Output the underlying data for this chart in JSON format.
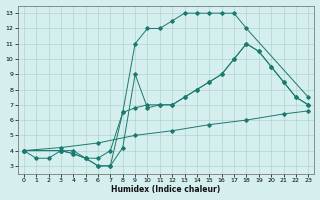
{
  "xlabel": "Humidex (Indice chaleur)",
  "bg_color": "#d5eeee",
  "grid_color": "#aacccc",
  "line_color": "#1a7a6e",
  "xlim": [
    -0.5,
    23.5
  ],
  "ylim": [
    2.5,
    13.5
  ],
  "xticks": [
    0,
    1,
    2,
    3,
    4,
    5,
    6,
    7,
    8,
    9,
    10,
    11,
    12,
    13,
    14,
    15,
    16,
    17,
    18,
    19,
    20,
    21,
    22,
    23
  ],
  "yticks": [
    3,
    4,
    5,
    6,
    7,
    8,
    9,
    10,
    11,
    12,
    13
  ],
  "line1_x": [
    0,
    1,
    2,
    3,
    4,
    5,
    6,
    7,
    8,
    9,
    10,
    11,
    12,
    13,
    14,
    15,
    16,
    17,
    18,
    23
  ],
  "line1_y": [
    4,
    3.5,
    3.5,
    4,
    4,
    3.5,
    3.0,
    3.0,
    6.5,
    11.0,
    12.0,
    12.0,
    12.5,
    13.0,
    13.0,
    13.0,
    13.0,
    13.0,
    12.0,
    7.5
  ],
  "line2_x": [
    0,
    3,
    4,
    5,
    6,
    7,
    8,
    9,
    10,
    11,
    12,
    13,
    14,
    15,
    16,
    17,
    18,
    19,
    20,
    21,
    22,
    23
  ],
  "line2_y": [
    4,
    4.0,
    3.8,
    3.5,
    3.5,
    4.0,
    6.5,
    6.8,
    7.0,
    7.0,
    7.0,
    7.5,
    8.0,
    8.5,
    9.0,
    10.0,
    11.0,
    10.5,
    9.5,
    8.5,
    7.5,
    7.0
  ],
  "line3_x": [
    0,
    3,
    6,
    9,
    12,
    15,
    18,
    21,
    23
  ],
  "line3_y": [
    4,
    4.2,
    4.5,
    5.0,
    5.3,
    5.7,
    6.0,
    6.4,
    6.6
  ],
  "line4_x": [
    0,
    3,
    4,
    5,
    6,
    7,
    8,
    9,
    10,
    11,
    12,
    13,
    14,
    15,
    16,
    17,
    18,
    19,
    20,
    21,
    22,
    23
  ],
  "line4_y": [
    4,
    4.0,
    3.8,
    3.5,
    3.0,
    3.0,
    4.2,
    9.0,
    6.8,
    7.0,
    7.0,
    7.5,
    8.0,
    8.5,
    9.0,
    10.0,
    11.0,
    10.5,
    9.5,
    8.5,
    7.5,
    7.0
  ]
}
